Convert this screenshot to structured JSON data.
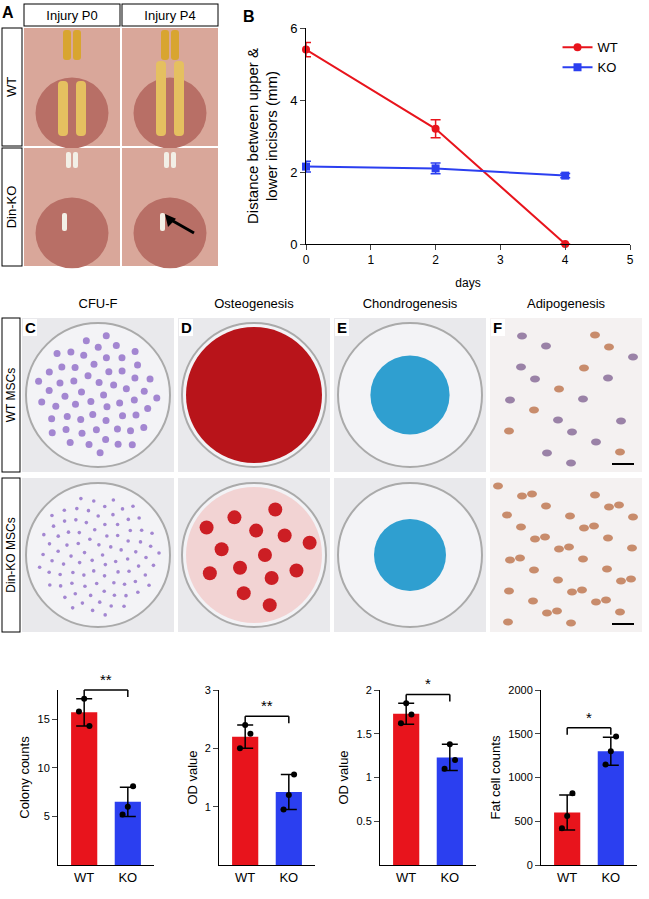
{
  "panel_a": {
    "letter": "A",
    "columns": [
      "Injury P0",
      "Injury P4"
    ],
    "rows": [
      "WT",
      "Din-KO"
    ]
  },
  "chart_data": [
    {
      "letter": "B",
      "type": "line",
      "x_label": "days",
      "y_label": "Distance between upper & lower incisors (mm)",
      "x": [
        0,
        2,
        4
      ],
      "xlim": [
        0,
        5
      ],
      "xticks": [
        0,
        1,
        2,
        3,
        4,
        5
      ],
      "ylim": [
        0,
        6
      ],
      "yticks": [
        0,
        2,
        4,
        6
      ],
      "grid": false,
      "legend": "upper right",
      "series": [
        {
          "name": "WT",
          "color": "#e8141c",
          "marker": "circle",
          "values": [
            5.4,
            3.2,
            0
          ],
          "errors": [
            0.2,
            0.25,
            0
          ]
        },
        {
          "name": "KO",
          "color": "#2b3ff0",
          "marker": "square",
          "values": [
            2.15,
            2.1,
            1.9
          ],
          "errors": [
            0.15,
            0.15,
            0.06
          ]
        }
      ]
    },
    {
      "type": "bar",
      "y_label": "Colony counts",
      "categories": [
        "WT",
        "KO"
      ],
      "values": [
        15.7,
        6.5
      ],
      "errors": [
        1.4,
        1.5
      ],
      "points": [
        [
          15.8,
          17.1,
          14.3
        ],
        [
          5.2,
          6.0,
          8.1
        ]
      ],
      "colors": [
        "#e8141c",
        "#2b3ff0"
      ],
      "ylim": [
        0,
        18
      ],
      "yticks": [
        5,
        10,
        15
      ],
      "grid": false,
      "significance": "**"
    },
    {
      "type": "bar",
      "y_label": "OD value",
      "categories": [
        "WT",
        "KO"
      ],
      "values": [
        2.2,
        1.25
      ],
      "errors": [
        0.2,
        0.3
      ],
      "points": [
        [
          2.0,
          2.4,
          2.25
        ],
        [
          0.95,
          1.2,
          1.55
        ]
      ],
      "colors": [
        "#e8141c",
        "#2b3ff0"
      ],
      "ylim": [
        0,
        3
      ],
      "yticks": [
        1,
        2,
        3
      ],
      "grid": false,
      "significance": "**"
    },
    {
      "type": "bar",
      "y_label": "OD value",
      "categories": [
        "WT",
        "KO"
      ],
      "values": [
        1.73,
        1.23
      ],
      "errors": [
        0.12,
        0.15
      ],
      "points": [
        [
          1.62,
          1.85,
          1.72
        ],
        [
          1.1,
          1.38,
          1.2
        ]
      ],
      "colors": [
        "#e8141c",
        "#2b3ff0"
      ],
      "ylim": [
        0,
        2
      ],
      "yticks": [
        0.5,
        1,
        1.5,
        2
      ],
      "grid": false,
      "significance": "*"
    },
    {
      "type": "bar",
      "y_label": "Fat cell counts",
      "categories": [
        "WT",
        "KO"
      ],
      "values": [
        600,
        1300
      ],
      "errors": [
        200,
        160
      ],
      "points": [
        [
          420,
          560,
          820
        ],
        [
          1150,
          1300,
          1470
        ]
      ],
      "colors": [
        "#e8141c",
        "#2b3ff0"
      ],
      "ylim": [
        0,
        2000
      ],
      "yticks": [
        0,
        500,
        1000,
        1500,
        2000
      ],
      "grid": false,
      "significance": "*"
    }
  ],
  "panels_c_f": {
    "letters": [
      "C",
      "D",
      "E",
      "F"
    ],
    "columns": [
      "CFU-F",
      "Osteogenesis",
      "Chondrogenesis",
      "Adipogenesis"
    ],
    "rows": [
      "WT MSCs",
      "Din-KO MSCs"
    ]
  }
}
